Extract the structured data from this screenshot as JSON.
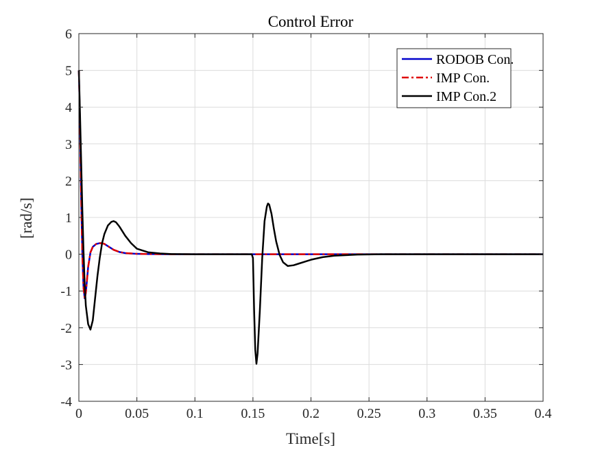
{
  "chart_data": {
    "type": "line",
    "title": "Control Error",
    "xlabel": "Time[s]",
    "ylabel": "[rad/s]",
    "xlim": [
      0,
      0.4
    ],
    "ylim": [
      -4,
      6
    ],
    "xticks": [
      0,
      0.05,
      0.1,
      0.15,
      0.2,
      0.25,
      0.3,
      0.35,
      0.4
    ],
    "xtick_labels": [
      "0",
      "0.05",
      "0.1",
      "0.15",
      "0.2",
      "0.25",
      "0.3",
      "0.35",
      "0.4"
    ],
    "yticks": [
      -4,
      -3,
      -2,
      -1,
      0,
      1,
      2,
      3,
      4,
      5,
      6
    ],
    "ytick_labels": [
      "-4",
      "-3",
      "-2",
      "-1",
      "0",
      "1",
      "2",
      "3",
      "4",
      "5",
      "6"
    ],
    "grid": true,
    "legend_position": "top-right",
    "series": [
      {
        "name": "RODOB Con.",
        "color": "#0000cc",
        "style": "solid",
        "x": [
          0,
          0.001,
          0.002,
          0.003,
          0.004,
          0.005,
          0.006,
          0.007,
          0.008,
          0.01,
          0.012,
          0.015,
          0.018,
          0.02,
          0.022,
          0.025,
          0.03,
          0.035,
          0.04,
          0.05,
          0.06,
          0.08,
          0.1,
          0.15,
          0.2,
          0.25,
          0.3,
          0.35,
          0.4
        ],
        "y": [
          5,
          3.5,
          1.5,
          0,
          -0.9,
          -1.2,
          -1.05,
          -0.7,
          -0.35,
          0.05,
          0.2,
          0.28,
          0.3,
          0.3,
          0.28,
          0.22,
          0.12,
          0.06,
          0.03,
          0.01,
          0.005,
          0,
          0,
          0,
          0,
          0,
          0,
          0,
          0
        ]
      },
      {
        "name": "IMP Con.",
        "color": "#e00000",
        "style": "dashdot",
        "x": [
          0,
          0.001,
          0.002,
          0.003,
          0.004,
          0.005,
          0.006,
          0.007,
          0.008,
          0.01,
          0.012,
          0.015,
          0.018,
          0.02,
          0.022,
          0.025,
          0.03,
          0.035,
          0.04,
          0.05,
          0.06,
          0.08,
          0.1,
          0.15,
          0.2,
          0.25,
          0.3,
          0.35,
          0.4
        ],
        "y": [
          5,
          3.5,
          1.5,
          0,
          -0.9,
          -1.2,
          -1.05,
          -0.7,
          -0.35,
          0.05,
          0.2,
          0.28,
          0.3,
          0.3,
          0.28,
          0.22,
          0.12,
          0.06,
          0.03,
          0.01,
          0.005,
          0,
          0,
          0,
          0,
          0,
          0,
          0,
          0
        ]
      },
      {
        "name": "IMP Con.2",
        "color": "#000000",
        "style": "solid",
        "x": [
          0,
          0.001,
          0.002,
          0.003,
          0.004,
          0.005,
          0.006,
          0.008,
          0.01,
          0.012,
          0.014,
          0.016,
          0.018,
          0.02,
          0.022,
          0.025,
          0.028,
          0.03,
          0.032,
          0.035,
          0.04,
          0.045,
          0.05,
          0.06,
          0.07,
          0.08,
          0.1,
          0.12,
          0.149,
          0.15,
          0.151,
          0.152,
          0.153,
          0.154,
          0.156,
          0.158,
          0.16,
          0.162,
          0.163,
          0.164,
          0.166,
          0.168,
          0.17,
          0.173,
          0.176,
          0.18,
          0.185,
          0.19,
          0.2,
          0.21,
          0.22,
          0.24,
          0.26,
          0.3,
          0.35,
          0.4
        ],
        "y": [
          5,
          3.8,
          2.5,
          1.2,
          0.1,
          -0.8,
          -1.4,
          -1.9,
          -2.05,
          -1.8,
          -1.2,
          -0.6,
          -0.1,
          0.3,
          0.55,
          0.78,
          0.88,
          0.9,
          0.87,
          0.75,
          0.5,
          0.3,
          0.15,
          0.05,
          0.02,
          0.005,
          0,
          0,
          0,
          -0.1,
          -1.5,
          -2.6,
          -2.98,
          -2.7,
          -1.5,
          -0.1,
          0.9,
          1.3,
          1.38,
          1.35,
          1.1,
          0.7,
          0.35,
          -0.02,
          -0.22,
          -0.32,
          -0.3,
          -0.25,
          -0.15,
          -0.08,
          -0.04,
          -0.01,
          0,
          0,
          0,
          0
        ]
      }
    ]
  }
}
